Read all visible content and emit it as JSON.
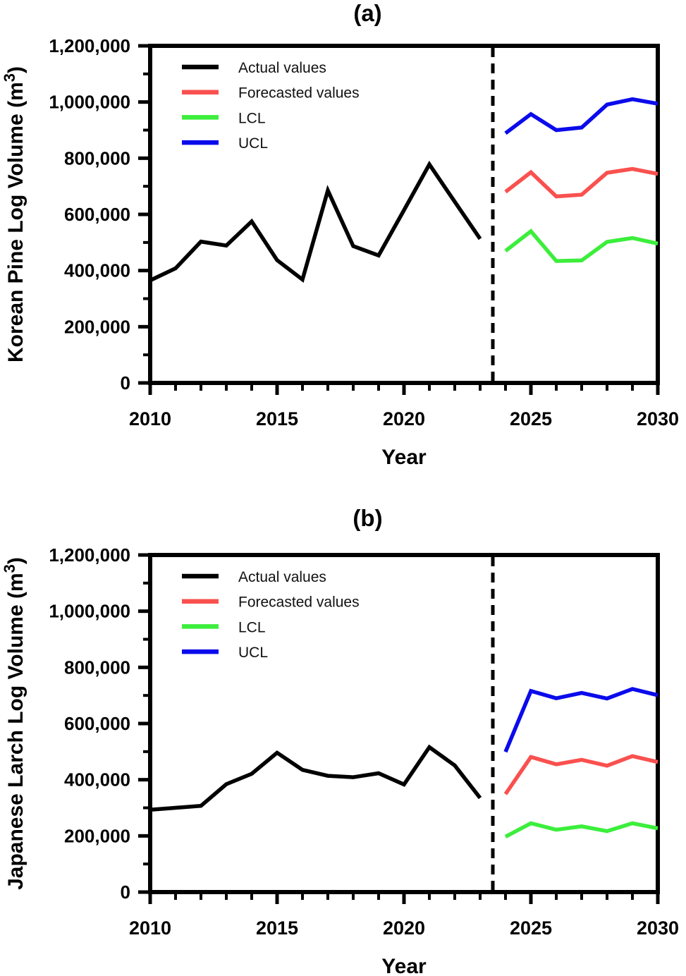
{
  "chart_data": [
    {
      "type": "line",
      "panel_label": "(a)",
      "xlabel": "Year",
      "ylabel": "Korean Pine Log Volume (m³)",
      "xlim": [
        2010,
        2030
      ],
      "ylim": [
        0,
        1200000
      ],
      "x_tick_labels": [
        "2010",
        "2015",
        "2020",
        "2025",
        "2030"
      ],
      "x_minor_step": 1,
      "y_major_step": 200000,
      "y_minor_step": 100000,
      "y_tick_labels": [
        "0",
        "200,000",
        "400,000",
        "600,000",
        "800,000",
        "1,000,000",
        "1,200,000"
      ],
      "forecast_divider_x": 2023.5,
      "legend_position": "top-left",
      "legend_entries": [
        "Actual values",
        "Forecasted values",
        "LCL",
        "UCL"
      ],
      "series": [
        {
          "name": "Actual values",
          "color": "#000000",
          "x": [
            2010,
            2011,
            2012,
            2013,
            2014,
            2015,
            2016,
            2017,
            2018,
            2019,
            2020,
            2021,
            2022,
            2023
          ],
          "values": [
            365000,
            408000,
            503000,
            489000,
            575000,
            437000,
            368000,
            685000,
            487000,
            454000,
            615000,
            778000,
            645000,
            513000
          ]
        },
        {
          "name": "Forecasted values",
          "color": "#F9514F",
          "x": [
            2024,
            2025,
            2026,
            2027,
            2028,
            2029,
            2030
          ],
          "values": [
            680000,
            750000,
            664000,
            670000,
            748000,
            762000,
            744000
          ]
        },
        {
          "name": "LCL",
          "color": "#3CEE3C",
          "x": [
            2024,
            2025,
            2026,
            2027,
            2028,
            2029,
            2030
          ],
          "values": [
            470000,
            540000,
            434000,
            436000,
            502000,
            516000,
            496000
          ]
        },
        {
          "name": "UCL",
          "color": "#0B0BEB",
          "x": [
            2024,
            2025,
            2026,
            2027,
            2028,
            2029,
            2030
          ],
          "values": [
            889000,
            957000,
            900000,
            909000,
            991000,
            1010000,
            994000
          ]
        }
      ]
    },
    {
      "type": "line",
      "panel_label": "(b)",
      "xlabel": "Year",
      "ylabel": "Japanese Larch Log Volume (m³)",
      "xlim": [
        2010,
        2030
      ],
      "ylim": [
        0,
        1200000
      ],
      "x_tick_labels": [
        "2010",
        "2015",
        "2020",
        "2025",
        "2030"
      ],
      "x_minor_step": 1,
      "y_major_step": 200000,
      "y_minor_step": 100000,
      "y_tick_labels": [
        "0",
        "200,000",
        "400,000",
        "600,000",
        "800,000",
        "1,000,000",
        "1,200,000"
      ],
      "forecast_divider_x": 2023.5,
      "legend_position": "top-left",
      "legend_entries": [
        "Actual values",
        "Forecasted values",
        "LCL",
        "UCL"
      ],
      "series": [
        {
          "name": "Actual values",
          "color": "#000000",
          "x": [
            2010,
            2011,
            2012,
            2013,
            2014,
            2015,
            2016,
            2017,
            2018,
            2019,
            2020,
            2021,
            2022,
            2023
          ],
          "values": [
            293000,
            300000,
            307000,
            384000,
            421000,
            496000,
            435000,
            414000,
            409000,
            423000,
            383000,
            516000,
            451000,
            335000
          ]
        },
        {
          "name": "Forecasted values",
          "color": "#F9514F",
          "x": [
            2024,
            2025,
            2026,
            2027,
            2028,
            2029,
            2030
          ],
          "values": [
            349000,
            481000,
            455000,
            471000,
            450000,
            484000,
            463000
          ]
        },
        {
          "name": "LCL",
          "color": "#3CEE3C",
          "x": [
            2024,
            2025,
            2026,
            2027,
            2028,
            2029,
            2030
          ],
          "values": [
            197000,
            245000,
            222000,
            234000,
            217000,
            245000,
            227000
          ]
        },
        {
          "name": "UCL",
          "color": "#0B0BEB",
          "x": [
            2024,
            2025,
            2026,
            2027,
            2028,
            2029,
            2030
          ],
          "values": [
            499000,
            716000,
            690000,
            709000,
            689000,
            723000,
            701000
          ]
        }
      ]
    }
  ]
}
